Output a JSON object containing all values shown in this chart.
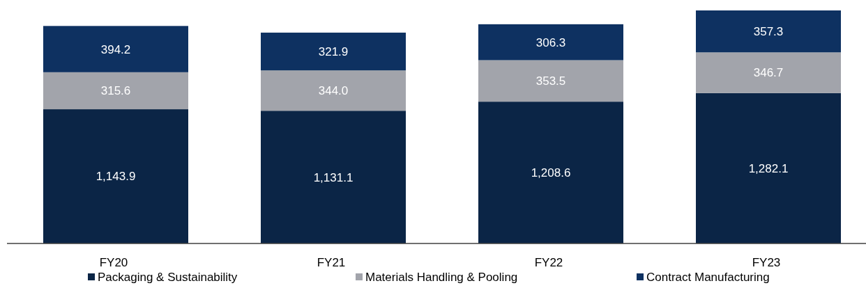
{
  "chart_data": {
    "type": "bar",
    "stacked": true,
    "categories": [
      "FY20",
      "FY21",
      "FY22",
      "FY23"
    ],
    "series": [
      {
        "name": "Packaging & Sustainability",
        "color": "#0b2546",
        "values": [
          1143.9,
          1131.1,
          1208.6,
          1282.1
        ],
        "value_labels": [
          "1,143.9",
          "1,131.1",
          "1,208.6",
          "1,282.1"
        ]
      },
      {
        "name": "Materials Handling & Pooling",
        "color": "#a2a4ab",
        "values": [
          315.6,
          344.0,
          353.5,
          346.7
        ],
        "value_labels": [
          "315.6",
          "344.0",
          "353.5",
          "346.7"
        ]
      },
      {
        "name": "Contract Manufacturing",
        "color": "#0e3161",
        "values": [
          394.2,
          321.9,
          306.3,
          357.3
        ],
        "value_labels": [
          "394.2",
          "321.9",
          "306.3",
          "357.3"
        ]
      }
    ],
    "legend": "bottom"
  }
}
